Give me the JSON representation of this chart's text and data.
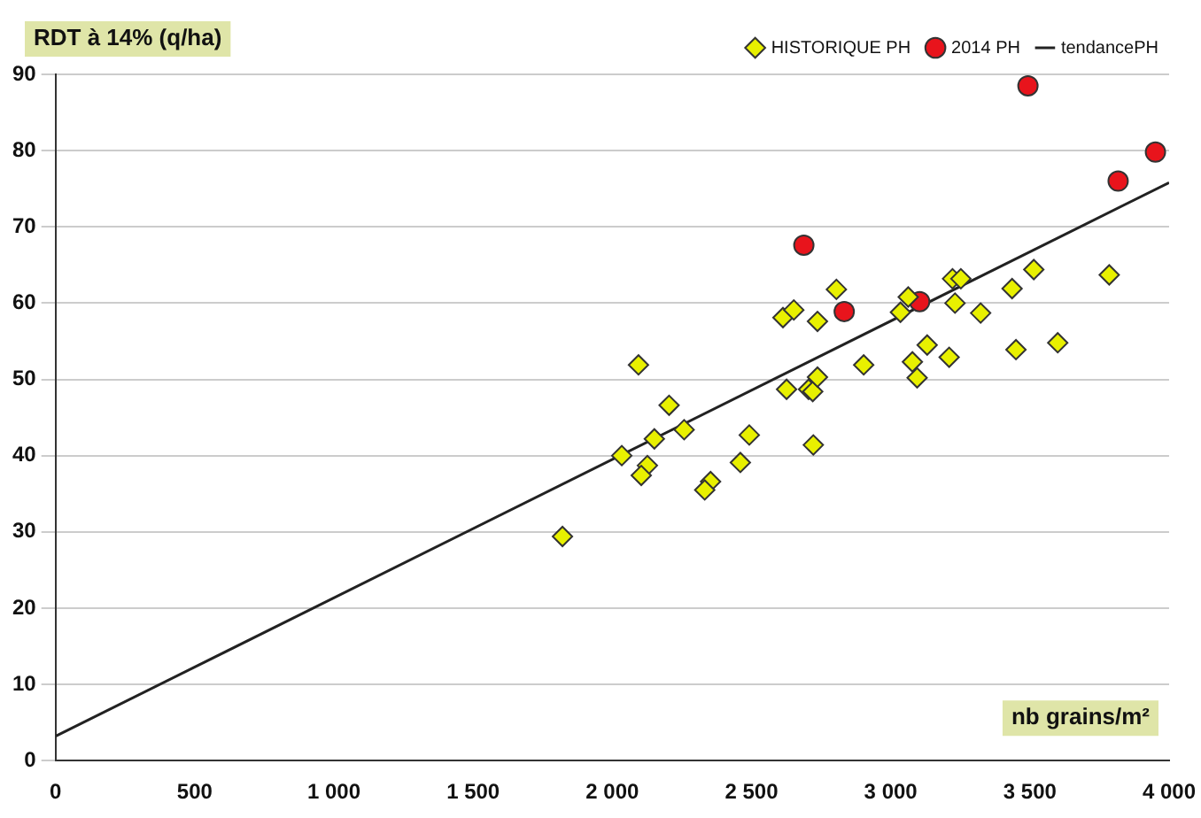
{
  "chart_data": {
    "type": "scatter",
    "xlabel": "nb grains/m²",
    "ylabel": "RDT à 14% (q/ha)",
    "xlim": [
      0,
      4000
    ],
    "xticks": [
      0,
      500,
      {
        "value": 1000,
        "label": "1 000"
      },
      {
        "value": 1500,
        "label": "1 500"
      },
      {
        "value": 2000,
        "label": "2 000"
      },
      {
        "value": 2500,
        "label": "2 500"
      },
      {
        "value": 3000,
        "label": "3 000"
      },
      {
        "value": 3500,
        "label": "3 500"
      },
      {
        "value": 4000,
        "label": "4 000"
      }
    ],
    "ylim": [
      0,
      90
    ],
    "yticks": [
      0,
      10,
      20,
      30,
      40,
      50,
      60,
      70,
      80,
      90
    ],
    "grid": "y",
    "legend": "top right",
    "series": [
      {
        "name": "HISTORIQUE PH",
        "marker": "diamond",
        "color": "#e8f000",
        "x": [
          1821,
          2094,
          2204,
          2034,
          2151,
          2258,
          2126,
          2104,
          2353,
          2332,
          2460,
          2492,
          2722,
          2626,
          2705,
          2720,
          2737,
          2613,
          2652,
          2737,
          2805,
          2903,
          3035,
          3063,
          3078,
          3095,
          3131,
          3210,
          3231,
          3222,
          3252,
          3323,
          3436,
          3450,
          3514,
          3600,
          3785
        ],
        "values": [
          29.4,
          51.9,
          46.6,
          40.0,
          42.2,
          43.4,
          38.7,
          37.4,
          36.6,
          35.5,
          39.1,
          42.7,
          41.4,
          48.7,
          48.7,
          48.4,
          50.3,
          58.1,
          59.1,
          57.6,
          61.8,
          51.9,
          58.8,
          60.8,
          52.3,
          50.2,
          54.5,
          52.9,
          60.0,
          63.2,
          63.2,
          58.7,
          61.9,
          53.9,
          64.4,
          54.8,
          63.7
        ]
      },
      {
        "name": "2014 PH",
        "marker": "circle",
        "color": "#e8141c",
        "x": [
          2688,
          2833,
          3104,
          3493,
          3817,
          3951
        ],
        "values": [
          67.6,
          58.9,
          60.2,
          88.5,
          76.0,
          79.8
        ]
      },
      {
        "name": "tendancePH",
        "type": "line",
        "marker": "none",
        "color": "#222222",
        "x": [
          0,
          4000
        ],
        "values": [
          3.2,
          75.8
        ]
      }
    ]
  }
}
